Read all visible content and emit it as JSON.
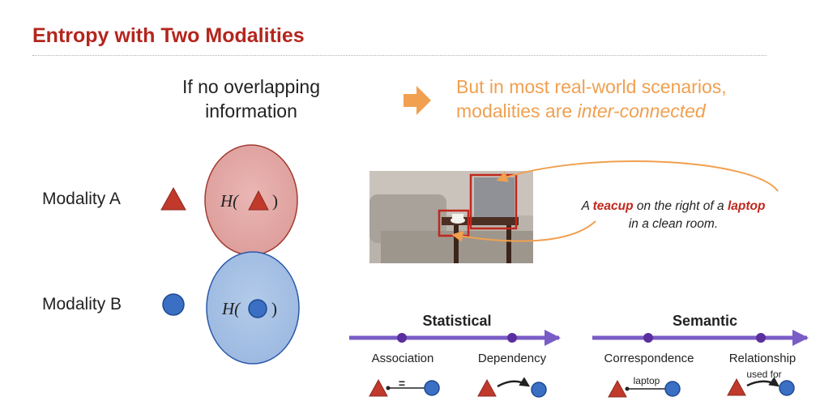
{
  "slide": {
    "title": "Entropy with Two Modalities",
    "no_overlap": {
      "line1": "If no overlapping",
      "line2": "information"
    },
    "real_world": {
      "line1": "But in most real-world scenarios,",
      "line2_prefix": "modalities are ",
      "line2_emph": "inter-connected"
    },
    "modality_a": "Modality A",
    "modality_b": "Modality B",
    "entropy_a": {
      "prefix": "H(",
      "suffix": ")"
    },
    "entropy_b": {
      "prefix": "H(",
      "suffix": ")"
    },
    "caption": {
      "p1": "A ",
      "teacup": "teacup",
      "p2": " on the right of a ",
      "laptop": "laptop",
      "line2": "in a clean room."
    },
    "statistical": {
      "title": "Statistical",
      "association": "Association",
      "dependency": "Dependency",
      "equals": "="
    },
    "semantic": {
      "title": "Semantic",
      "correspondence": "Correspondence",
      "relationship": "Relationship",
      "laptop_label": "laptop",
      "used_for_label": "used for"
    },
    "icons": [
      "triangle-icon",
      "circle-icon",
      "right-arrow-icon"
    ],
    "colors": {
      "title": "#b3261e",
      "accent_orange": "#f0a050",
      "triangle": "#c0392b",
      "circle": "#3a6fc4",
      "ellipse_a": "#e8aaa8",
      "ellipse_b": "#a9c3e6",
      "axis_purple": "#7a5cc6",
      "highlight_red": "#c0271c"
    }
  }
}
